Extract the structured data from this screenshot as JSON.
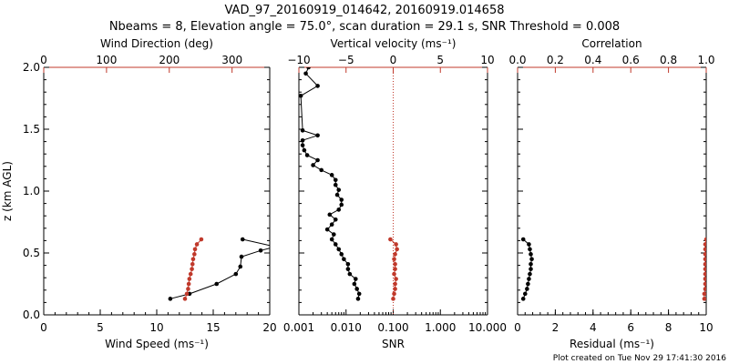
{
  "title": {
    "line1": "VAD_97_20160919_014642, 20160919.014658",
    "line2": "Nbeams = 8, Elevation angle = 75.0°, scan duration = 29.1 s, SNR Threshold = 0.008"
  },
  "footer": "Plot created on Tue Nov 29 17:41:30 2016",
  "colors": {
    "primary": "#000000",
    "secondary": "#c0392b"
  },
  "chart_data": [
    {
      "type": "line",
      "ylabel": "z (km AGL)",
      "ylim": [
        0,
        2
      ],
      "y_ticks": [
        "0.0",
        "0.5",
        "1.0",
        "1.5",
        "2.0"
      ],
      "xlabel": "Wind Speed (ms⁻¹)",
      "xlim": [
        0,
        20
      ],
      "x_ticks": [
        "0",
        "5",
        "10",
        "15",
        "20"
      ],
      "top_xlabel": "Wind Direction (deg)",
      "top_xlim": [
        0,
        360
      ],
      "top_x_ticks": [
        "0",
        "100",
        "200",
        "300"
      ],
      "series": [
        {
          "axis": "bottom",
          "color": "#000000",
          "points": [
            [
              11.2,
              0.13
            ],
            [
              12.9,
              0.17
            ],
            [
              15.3,
              0.25
            ],
            [
              17.0,
              0.33
            ],
            [
              17.4,
              0.39
            ],
            [
              17.5,
              0.47
            ],
            [
              19.2,
              0.52
            ],
            [
              20.5,
              0.55
            ]
          ]
        },
        {
          "axis": "bottom",
          "color": "#000000",
          "points": [
            [
              17.6,
              0.61
            ],
            [
              20.5,
              0.55
            ]
          ]
        },
        {
          "axis": "top",
          "color": "#c0392b",
          "points": [
            [
              225,
              0.13
            ],
            [
              228,
              0.17
            ],
            [
              230,
              0.21
            ],
            [
              231,
              0.25
            ],
            [
              232,
              0.29
            ],
            [
              234,
              0.33
            ],
            [
              236,
              0.37
            ],
            [
              237,
              0.41
            ],
            [
              238,
              0.45
            ],
            [
              240,
              0.49
            ],
            [
              241,
              0.53
            ],
            [
              244,
              0.57
            ],
            [
              251,
              0.61
            ]
          ]
        }
      ]
    },
    {
      "type": "line",
      "xlabel": "SNR",
      "xscale": "log",
      "xlim": [
        0.001,
        10
      ],
      "x_ticks": [
        "0.001",
        "0.010",
        "0.100",
        "1.000",
        "10.000"
      ],
      "top_xlabel": "Vertical velocity (ms⁻¹)",
      "top_xlim": [
        -10,
        10
      ],
      "top_x_ticks": [
        "−10",
        "−5",
        "0",
        "5",
        "10"
      ],
      "ylim": [
        0,
        2
      ],
      "zero_line": {
        "axis": "top",
        "value": 0,
        "style": "dotted",
        "color": "#c0392b"
      },
      "series": [
        {
          "axis": "bottom",
          "color": "#000000",
          "points": [
            [
              0.018,
              0.13
            ],
            [
              0.019,
              0.17
            ],
            [
              0.017,
              0.21
            ],
            [
              0.015,
              0.25
            ],
            [
              0.016,
              0.29
            ],
            [
              0.012,
              0.33
            ],
            [
              0.011,
              0.37
            ],
            [
              0.011,
              0.41
            ],
            [
              0.009,
              0.45
            ],
            [
              0.008,
              0.49
            ],
            [
              0.007,
              0.53
            ],
            [
              0.006,
              0.57
            ],
            [
              0.005,
              0.61
            ],
            [
              0.0055,
              0.65
            ],
            [
              0.004,
              0.69
            ],
            [
              0.005,
              0.73
            ],
            [
              0.006,
              0.77
            ],
            [
              0.0045,
              0.81
            ],
            [
              0.007,
              0.85
            ],
            [
              0.008,
              0.89
            ],
            [
              0.008,
              0.93
            ],
            [
              0.0065,
              0.97
            ],
            [
              0.007,
              1.01
            ],
            [
              0.006,
              1.05
            ],
            [
              0.006,
              1.09
            ],
            [
              0.005,
              1.13
            ],
            [
              0.003,
              1.17
            ],
            [
              0.002,
              1.21
            ],
            [
              0.0025,
              1.25
            ],
            [
              0.0015,
              1.29
            ],
            [
              0.0013,
              1.33
            ],
            [
              0.0012,
              1.37
            ],
            [
              0.0012,
              1.41
            ],
            [
              0.0025,
              1.45
            ],
            [
              0.0012,
              1.49
            ],
            [
              0.0011,
              1.77
            ],
            [
              0.0025,
              1.85
            ],
            [
              0.0014,
              1.95
            ],
            [
              0.0016,
              2.0
            ]
          ]
        },
        {
          "axis": "top",
          "color": "#c0392b",
          "points": [
            [
              0,
              0.13
            ],
            [
              0.1,
              0.17
            ],
            [
              0.2,
              0.21
            ],
            [
              0.2,
              0.25
            ],
            [
              0.3,
              0.29
            ],
            [
              0.1,
              0.33
            ],
            [
              0.2,
              0.37
            ],
            [
              0.2,
              0.41
            ],
            [
              0.1,
              0.45
            ],
            [
              0.2,
              0.49
            ],
            [
              0.4,
              0.53
            ],
            [
              0.3,
              0.57
            ],
            [
              -0.3,
              0.61
            ]
          ]
        }
      ]
    },
    {
      "type": "line",
      "xlabel": "Residual (ms⁻¹)",
      "xlim": [
        0,
        10
      ],
      "x_ticks": [
        "0",
        "2",
        "4",
        "6",
        "8",
        "10"
      ],
      "top_xlabel": "Correlation",
      "top_xlim": [
        0,
        1
      ],
      "top_x_ticks": [
        "0.0",
        "0.2",
        "0.4",
        "0.6",
        "0.8",
        "1.0"
      ],
      "ylim": [
        0,
        2
      ],
      "series": [
        {
          "axis": "bottom",
          "color": "#000000",
          "points": [
            [
              0.3,
              0.13
            ],
            [
              0.4,
              0.17
            ],
            [
              0.5,
              0.21
            ],
            [
              0.55,
              0.25
            ],
            [
              0.6,
              0.29
            ],
            [
              0.65,
              0.33
            ],
            [
              0.7,
              0.37
            ],
            [
              0.7,
              0.41
            ],
            [
              0.75,
              0.45
            ],
            [
              0.7,
              0.49
            ],
            [
              0.65,
              0.53
            ],
            [
              0.6,
              0.57
            ],
            [
              0.3,
              0.61
            ]
          ]
        },
        {
          "axis": "top",
          "color": "#c0392b",
          "points": [
            [
              0.99,
              0.13
            ],
            [
              0.99,
              0.17
            ],
            [
              0.995,
              0.21
            ],
            [
              0.995,
              0.25
            ],
            [
              0.995,
              0.29
            ],
            [
              0.995,
              0.33
            ],
            [
              0.995,
              0.37
            ],
            [
              0.995,
              0.41
            ],
            [
              0.995,
              0.45
            ],
            [
              0.995,
              0.49
            ],
            [
              0.995,
              0.53
            ],
            [
              0.995,
              0.57
            ],
            [
              1.0,
              0.61
            ]
          ]
        }
      ]
    }
  ]
}
